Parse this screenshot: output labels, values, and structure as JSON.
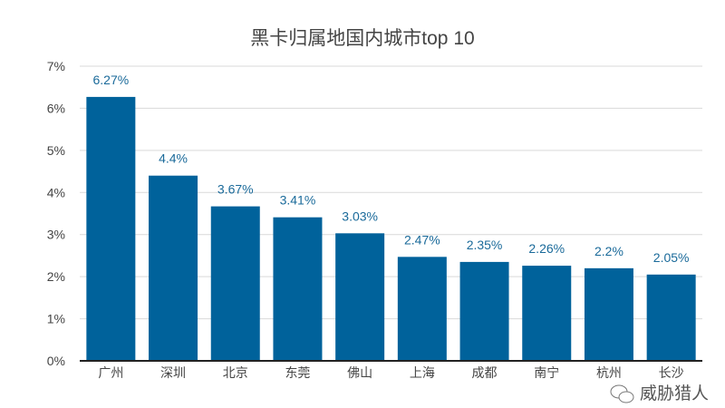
{
  "chart_data": {
    "type": "bar",
    "title": "黑卡归属地国内城市top 10",
    "categories": [
      "广州",
      "深圳",
      "北京",
      "东莞",
      "佛山",
      "上海",
      "成都",
      "南宁",
      "杭州",
      "长沙"
    ],
    "values": [
      6.27,
      4.4,
      3.67,
      3.41,
      3.03,
      2.47,
      2.35,
      2.26,
      2.2,
      2.05
    ],
    "data_labels": [
      "6.27%",
      "4.4%",
      "3.67%",
      "3.41%",
      "3.03%",
      "2.47%",
      "2.35%",
      "2.26%",
      "2.2%",
      "2.05%"
    ],
    "yticks": [
      "0%",
      "1%",
      "2%",
      "3%",
      "4%",
      "5%",
      "6%",
      "7%"
    ],
    "ylim": [
      0,
      7
    ],
    "xlabel": "",
    "ylabel": "",
    "grid": true,
    "bar_color": "#00629b",
    "label_color": "#1a6a9a"
  },
  "watermark": {
    "text": "威胁猎人"
  }
}
